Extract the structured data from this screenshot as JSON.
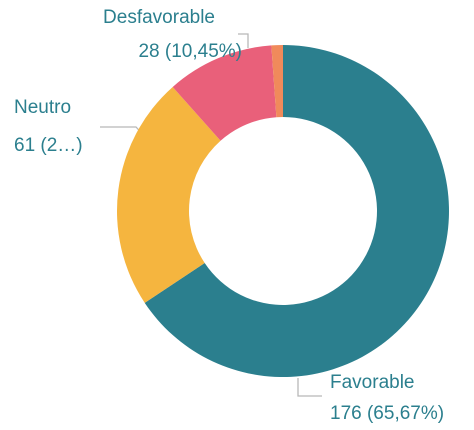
{
  "chart_data": {
    "type": "donut",
    "categories": [
      "Favorable",
      "Neutro",
      "Desfavorable",
      null
    ],
    "values": [
      176,
      61,
      28,
      3
    ],
    "value_labels": [
      "176 (65,67%)",
      "61 (2…)",
      "28 (10,45%)",
      null
    ],
    "colors": [
      "#2b7f8e",
      "#f5b53f",
      "#e9607a",
      "#f08a5b"
    ]
  }
}
